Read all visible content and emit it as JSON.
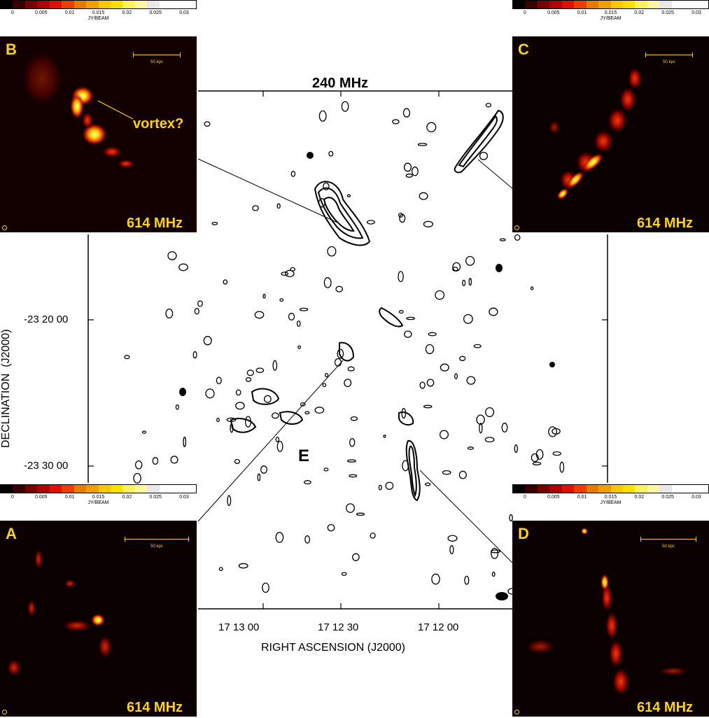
{
  "figure": {
    "title": "240 MHz",
    "xlabel": "RIGHT ASCENSION  (J2000)",
    "ylabel": "DECLINATION  (J2000)",
    "x_ticks": [
      "17 13 00",
      "17 12 30",
      "17 12 00"
    ],
    "y_ticks": [
      "-23 20 00",
      "-23 30 00"
    ],
    "region_label": "E"
  },
  "colorbars": {
    "unit": "JY/BEAM",
    "B": [
      "0",
      "0.005",
      "0.01",
      "0.015",
      "0.02",
      "0.025",
      "0.03"
    ],
    "C": [
      "0",
      "0.005",
      "0.01",
      "0.015",
      "0.02",
      "0.025",
      "0.03"
    ],
    "A": [
      "0",
      "0.005",
      "0.01",
      "0.015",
      "0.02",
      "0.025",
      "0.03"
    ],
    "D": [
      "0",
      "0.005",
      "0.01",
      "0.015",
      "0.02",
      "0.025",
      "0.03"
    ],
    "colors": [
      "#000000",
      "#3a0000",
      "#7a0000",
      "#b00000",
      "#e01000",
      "#f03c00",
      "#e87a00",
      "#f0a000",
      "#f8c800",
      "#ffe000",
      "#fff060",
      "#fff8a0",
      "#e8e8e8",
      "#ffffff",
      "#ffffff",
      "#ffffff"
    ]
  },
  "panels": {
    "A": {
      "label": "A",
      "freq": "614 MHz",
      "scale": "50 kpc"
    },
    "B": {
      "label": "B",
      "freq": "614 MHz",
      "scale": "50 kpc",
      "annotation": "vortex?"
    },
    "C": {
      "label": "C",
      "freq": "614 MHz",
      "scale": "50 kpc"
    },
    "D": {
      "label": "D",
      "freq": "614 MHz",
      "scale": "50 kpc"
    }
  }
}
